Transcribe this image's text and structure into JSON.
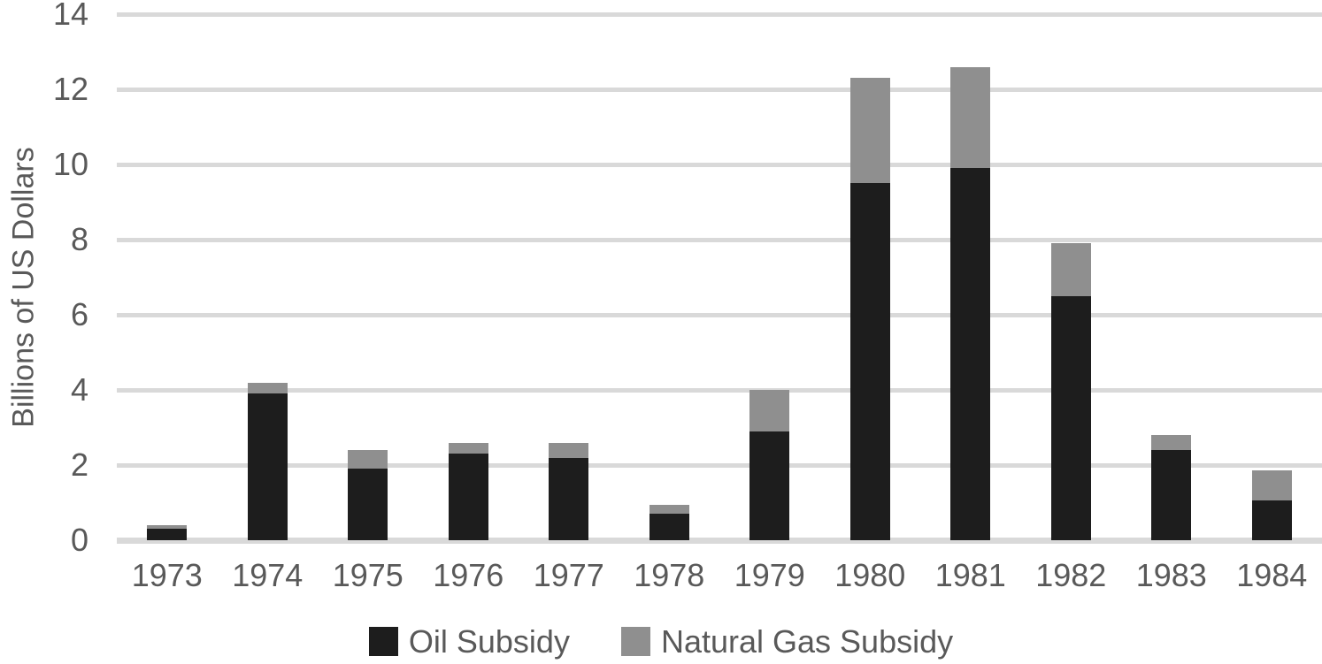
{
  "chart_data": {
    "type": "bar",
    "stacked": true,
    "title": "",
    "xlabel": "",
    "ylabel": "Billions of US Dollars",
    "ylim": [
      0,
      14
    ],
    "yticks": [
      0,
      2,
      4,
      6,
      8,
      10,
      12,
      14
    ],
    "grid": true,
    "legend_position": "bottom",
    "categories": [
      "1973",
      "1974",
      "1975",
      "1976",
      "1977",
      "1978",
      "1979",
      "1980",
      "1981",
      "1982",
      "1983",
      "1984"
    ],
    "series": [
      {
        "name": "Oil Subsidy",
        "color": "#1d1d1d",
        "values": [
          0.3,
          3.9,
          1.9,
          2.3,
          2.2,
          0.7,
          2.9,
          9.5,
          9.9,
          6.5,
          2.4,
          1.05
        ]
      },
      {
        "name": "Natural Gas Subsidy",
        "color": "#8f8f8f",
        "values": [
          0.1,
          0.3,
          0.5,
          0.3,
          0.4,
          0.25,
          1.1,
          2.8,
          2.7,
          1.4,
          0.4,
          0.8
        ]
      }
    ],
    "stacked_totals": [
      0.4,
      4.2,
      2.4,
      2.6,
      2.6,
      0.95,
      4.0,
      12.3,
      12.6,
      7.9,
      2.8,
      1.85
    ]
  },
  "colors": {
    "background": "#ffffff",
    "gridline": "#d9d9d9",
    "axis_text": "#595959"
  }
}
